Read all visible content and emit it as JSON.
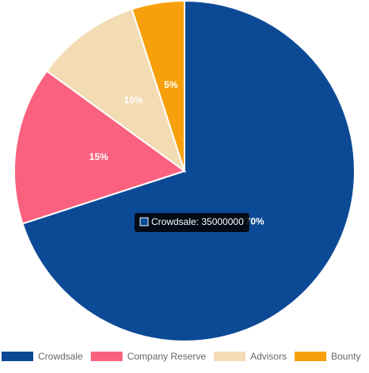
{
  "chart_data": {
    "type": "pie",
    "categories": [
      "Crowdsale",
      "Company Reserve",
      "Advisors",
      "Bounty"
    ],
    "values": [
      70,
      15,
      10,
      5
    ],
    "value_labels": [
      "70%",
      "15%",
      "10%",
      "5%"
    ],
    "colors": [
      "#0d4a96",
      "#f9617e",
      "#f3dcb4",
      "#f7a00b"
    ],
    "legend": "bottom",
    "tooltip": {
      "text": "Crowdsale: 35000000",
      "series": 0
    }
  }
}
